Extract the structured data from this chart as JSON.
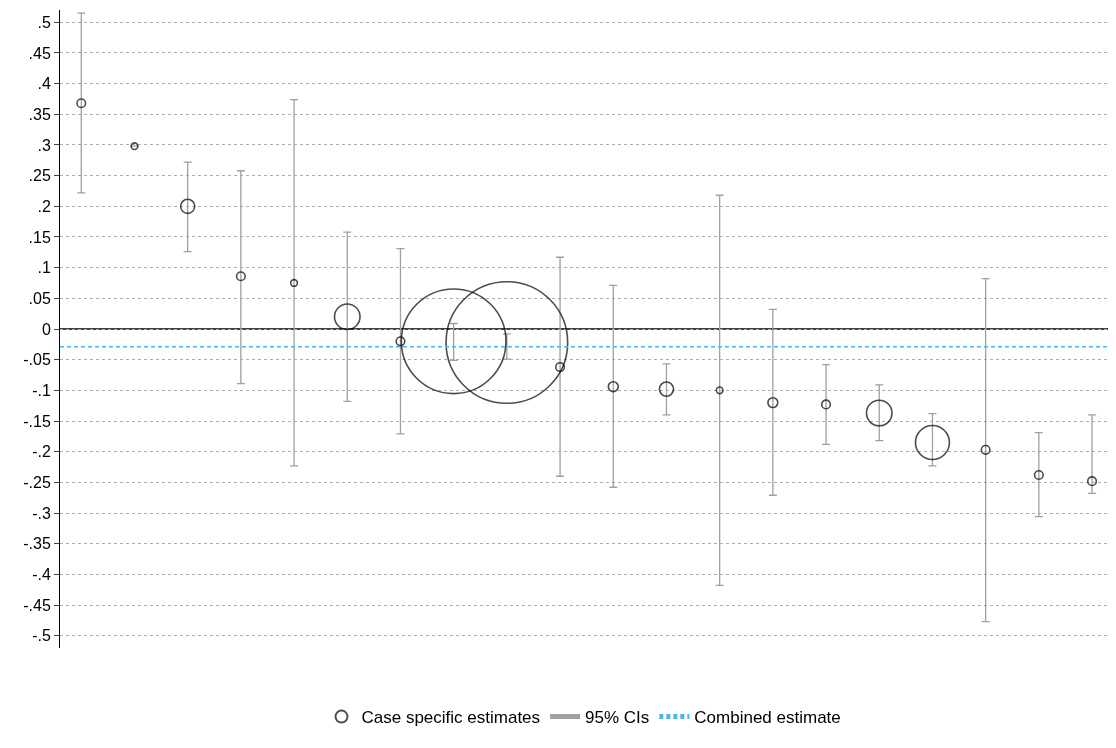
{
  "chart_data": {
    "type": "bubble",
    "categories": [
      null,
      null,
      null,
      null,
      null,
      null,
      null,
      null,
      null,
      null,
      null,
      null,
      null,
      null,
      null,
      null,
      null,
      null,
      null,
      null
    ],
    "series": [
      {
        "name": "Case specific estimates",
        "color": "#000000",
        "values": [
          0.368,
          0.298,
          0.2,
          0.086,
          0.075,
          0.02,
          -0.02,
          -0.02,
          -0.022,
          -0.062,
          -0.094,
          -0.098,
          -0.1,
          -0.12,
          -0.123,
          -0.137,
          -0.185,
          -0.197,
          -0.238,
          -0.248
        ],
        "sizes": [
          0.005,
          0.003,
          0.0135,
          0.005,
          0.003,
          0.044,
          0.005,
          0.74,
          1,
          0.005,
          0.0066,
          0.0135,
          0.003,
          0.0066,
          0.005,
          0.044,
          0.078,
          0.005,
          0.005,
          0.005
        ],
        "errors": [
          [
            0.222,
            0.515
          ],
          null,
          [
            0.126,
            0.272
          ],
          [
            -0.089,
            0.258
          ],
          [
            -0.223,
            0.374
          ],
          [
            -0.118,
            0.158
          ],
          [
            -0.171,
            0.131
          ],
          [
            -0.051,
            0.009
          ],
          [
            -0.049,
            -0.008
          ],
          [
            -0.24,
            0.117
          ],
          [
            -0.258,
            0.071
          ],
          [
            -0.14,
            -0.057
          ],
          [
            -0.418,
            0.218
          ],
          [
            -0.271,
            0.032
          ],
          [
            -0.188,
            -0.058
          ],
          [
            -0.182,
            -0.091
          ],
          [
            -0.223,
            -0.138
          ],
          [
            -0.477,
            0.082
          ],
          [
            -0.306,
            -0.169
          ],
          [
            -0.268,
            -0.14
          ]
        ]
      }
    ],
    "annotations": [
      "95% CIs"
    ],
    "ref_lines": [
      {
        "axis": "y",
        "value": 0,
        "color": "#000000",
        "line_style": "solid"
      },
      {
        "axis": "y",
        "value": -0.029,
        "label": "Combined estimate",
        "color": "#4fb3e6",
        "line_style": "dashed"
      }
    ],
    "ylim": [
      -0.52,
      0.52
    ],
    "yticks": [
      {
        "value": 0.5,
        "label": ".5"
      },
      {
        "value": 0.45,
        "label": ".45"
      },
      {
        "value": 0.4,
        "label": ".4"
      },
      {
        "value": 0.35,
        "label": ".35"
      },
      {
        "value": 0.3,
        "label": ".3"
      },
      {
        "value": 0.25,
        "label": ".25"
      },
      {
        "value": 0.2,
        "label": ".2"
      },
      {
        "value": 0.15,
        "label": ".15"
      },
      {
        "value": 0.1,
        "label": ".1"
      },
      {
        "value": 0.05,
        "label": ".05"
      },
      0,
      {
        "value": -0.05,
        "label": "-.05"
      },
      {
        "value": -0.1,
        "label": "-.1"
      },
      {
        "value": -0.15,
        "label": "-.15"
      },
      {
        "value": -0.2,
        "label": "-.2"
      },
      {
        "value": -0.25,
        "label": "-.25"
      },
      {
        "value": -0.3,
        "label": "-.3"
      },
      {
        "value": -0.35,
        "label": "-.35"
      },
      {
        "value": -0.4,
        "label": "-.4"
      },
      {
        "value": -0.45,
        "label": "-.45"
      },
      {
        "value": -0.5,
        "label": "-.5"
      }
    ],
    "grid": "y",
    "legend": "bottom",
    "marker": "circle"
  }
}
